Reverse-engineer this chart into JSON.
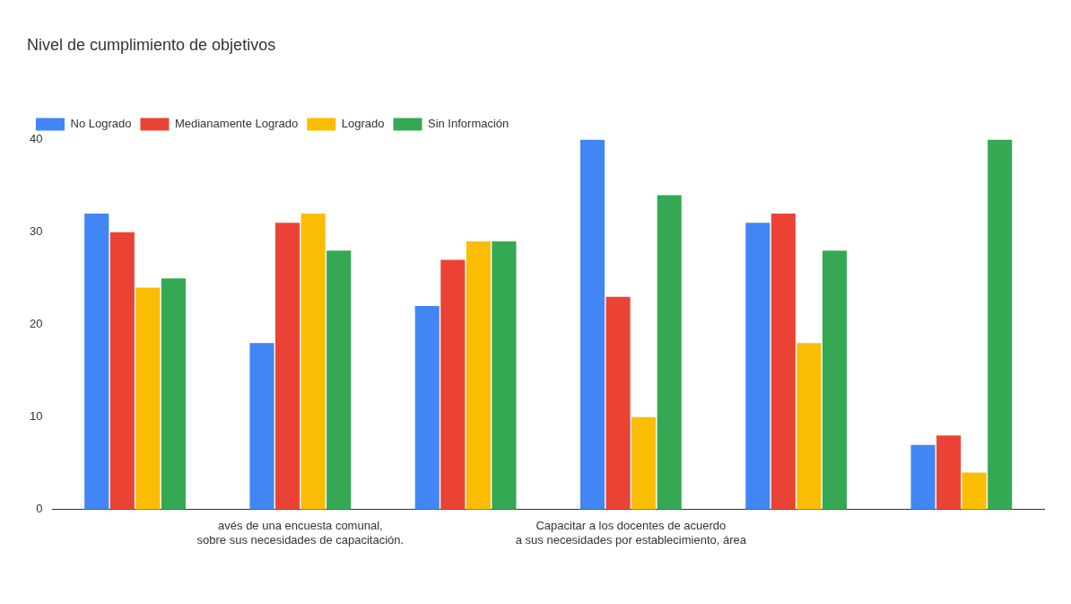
{
  "chart_data": {
    "type": "bar",
    "title": "Nivel de cumplimiento de objetivos",
    "categories": [
      null,
      "avés de una encuesta comunal, sobre sus necesidades de capacitación.",
      null,
      "Capacitar a los docentes de acuerdo a sus necesidades por establecimiento, área",
      null,
      null
    ],
    "series": [
      {
        "name": "No Logrado",
        "color": "#4285f4",
        "values": [
          32,
          18,
          22,
          40,
          31,
          7
        ]
      },
      {
        "name": "Medianamente Logrado",
        "color": "#ea4335",
        "values": [
          30,
          31,
          27,
          23,
          32,
          8
        ]
      },
      {
        "name": "Logrado",
        "color": "#fbbc04",
        "values": [
          24,
          32,
          29,
          10,
          18,
          4
        ]
      },
      {
        "name": "Sin Información",
        "color": "#34a853",
        "values": [
          25,
          28,
          29,
          34,
          28,
          40
        ]
      }
    ],
    "ylim": [
      0,
      40
    ],
    "yticks": [
      0,
      10,
      20,
      30,
      40
    ],
    "grid": false,
    "legend": "top left"
  }
}
